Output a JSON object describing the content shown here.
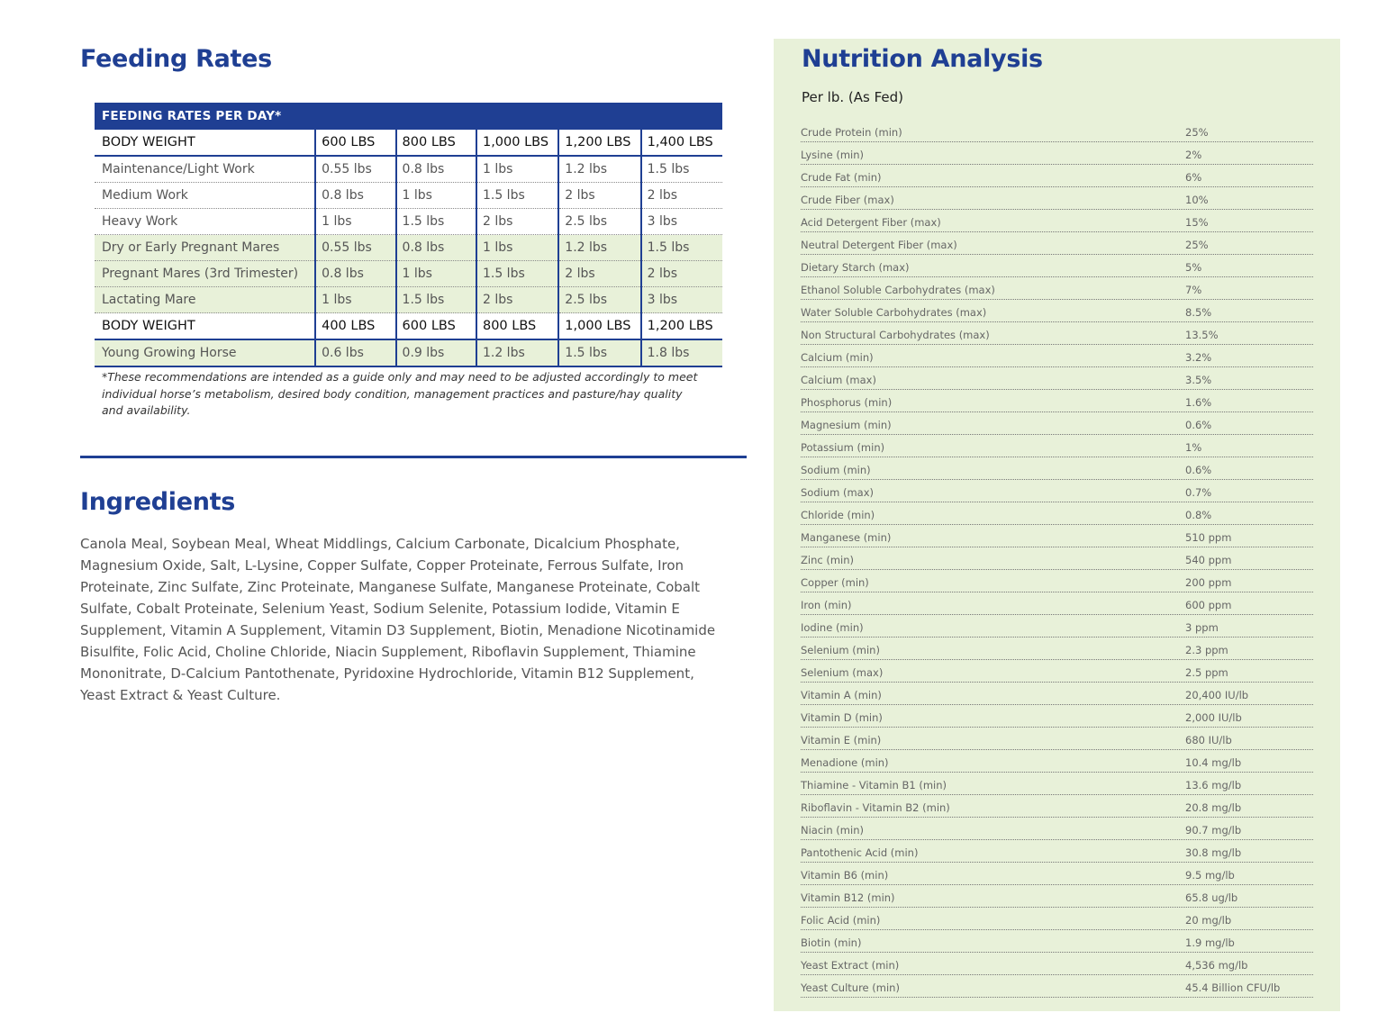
{
  "feeding": {
    "title": "Feeding Rates",
    "banner": "FEEDING RATES PER DAY*",
    "header1": [
      "BODY WEIGHT",
      "600 LBS",
      "800 LBS",
      "1,000 LBS",
      "1,200 LBS",
      "1,400 LBS"
    ],
    "rows1": [
      [
        "Maintenance/Light Work",
        "0.55 lbs",
        "0.8 lbs",
        "1 lbs",
        "1.2 lbs",
        "1.5 lbs"
      ],
      [
        "Medium Work",
        "0.8 lbs",
        "1 lbs",
        "1.5 lbs",
        "2 lbs",
        "2 lbs"
      ],
      [
        "Heavy Work",
        "1 lbs",
        "1.5 lbs",
        "2 lbs",
        "2.5 lbs",
        "3 lbs"
      ],
      [
        "Dry or Early Pregnant Mares",
        "0.55 lbs",
        "0.8 lbs",
        "1 lbs",
        "1.2 lbs",
        "1.5 lbs"
      ],
      [
        "Pregnant Mares (3rd Trimester)",
        "0.8 lbs",
        "1 lbs",
        "1.5 lbs",
        "2 lbs",
        "2 lbs"
      ],
      [
        "Lactating Mare",
        "1 lbs",
        "1.5 lbs",
        "2 lbs",
        "2.5 lbs",
        "3 lbs"
      ]
    ],
    "header2": [
      "BODY WEIGHT",
      "400 LBS",
      "600 LBS",
      "800 LBS",
      "1,000 LBS",
      "1,200 LBS"
    ],
    "rows2": [
      [
        "Young Growing Horse",
        "0.6 lbs",
        "0.9 lbs",
        "1.2 lbs",
        "1.5 lbs",
        "1.8 lbs"
      ]
    ],
    "footnote": "*These recommendations are intended as a guide only and may need to be adjusted accordingly to meet individual horse’s metabolism, desired body condition, management practices and pasture/hay quality and availability."
  },
  "ingredients": {
    "title": "Ingredients",
    "text": "Canola Meal, Soybean Meal, Wheat Middlings, Calcium Carbonate, Dicalcium Phosphate, Magnesium Oxide, Salt, L-Lysine, Copper Sulfate, Copper Proteinate, Ferrous Sulfate, Iron Proteinate, Zinc Sulfate, Zinc Proteinate, Manganese Sulfate, Manganese Proteinate, Cobalt Sulfate, Cobalt Proteinate, Selenium Yeast, Sodium Selenite, Potassium Iodide, Vitamin E Supplement, Vitamin A Supplement, Vitamin D3 Supplement, Biotin, Menadione Nicotinamide Bisulfite, Folic Acid, Choline Chloride, Niacin Supplement, Riboflavin Supplement, Thiamine Mononitrate, D-Calcium Pantothenate, Pyridoxine Hydrochloride, Vitamin B12 Supplement, Yeast Extract & Yeast Culture."
  },
  "nutrition": {
    "title": "Nutrition Analysis",
    "subtitle": "Per lb. (As Fed)",
    "items": [
      [
        "Crude Protein (min)",
        "25%"
      ],
      [
        "Lysine (min)",
        "2%"
      ],
      [
        "Crude Fat (min)",
        "6%"
      ],
      [
        "Crude Fiber (max)",
        "10%"
      ],
      [
        "Acid Detergent Fiber (max)",
        "15%"
      ],
      [
        "Neutral Detergent Fiber (max)",
        "25%"
      ],
      [
        "Dietary Starch (max)",
        "5%"
      ],
      [
        "Ethanol Soluble Carbohydrates (max)",
        "7%"
      ],
      [
        "Water Soluble Carbohydrates (max)",
        "8.5%"
      ],
      [
        "Non Structural Carbohydrates (max)",
        "13.5%"
      ],
      [
        "Calcium (min)",
        "3.2%"
      ],
      [
        "Calcium (max)",
        "3.5%"
      ],
      [
        "Phosphorus (min)",
        "1.6%"
      ],
      [
        "Magnesium (min)",
        "0.6%"
      ],
      [
        "Potassium (min)",
        "1%"
      ],
      [
        "Sodium (min)",
        "0.6%"
      ],
      [
        "Sodium (max)",
        "0.7%"
      ],
      [
        "Chloride (min)",
        "0.8%"
      ],
      [
        "Manganese (min)",
        "510 ppm"
      ],
      [
        "Zinc (min)",
        "540 ppm"
      ],
      [
        "Copper (min)",
        "200 ppm"
      ],
      [
        "Iron (min)",
        "600 ppm"
      ],
      [
        "Iodine (min)",
        "3 ppm"
      ],
      [
        "Selenium (min)",
        "2.3 ppm"
      ],
      [
        "Selenium (max)",
        "2.5 ppm"
      ],
      [
        "Vitamin A (min)",
        "20,400 IU/lb"
      ],
      [
        "Vitamin D (min)",
        "2,000 IU/lb"
      ],
      [
        "Vitamin E (min)",
        "680 IU/lb"
      ],
      [
        "Menadione (min)",
        "10.4 mg/lb"
      ],
      [
        "Thiamine - Vitamin B1 (min)",
        "13.6 mg/lb"
      ],
      [
        "Riboflavin - Vitamin B2 (min)",
        "20.8 mg/lb"
      ],
      [
        "Niacin (min)",
        "90.7 mg/lb"
      ],
      [
        "Pantothenic Acid (min)",
        "30.8 mg/lb"
      ],
      [
        "Vitamin B6 (min)",
        "9.5 mg/lb"
      ],
      [
        "Vitamin B12 (min)",
        "65.8 ug/lb"
      ],
      [
        "Folic Acid (min)",
        "20 mg/lb"
      ],
      [
        "Biotin (min)",
        "1.9 mg/lb"
      ],
      [
        "Yeast Extract (min)",
        "4,536 mg/lb"
      ],
      [
        "Yeast Culture (min)",
        "45.4 Billion CFU/lb"
      ]
    ]
  },
  "colors": {
    "brand_blue": "#1f3f93",
    "panel_green": "#e8f1d9"
  }
}
